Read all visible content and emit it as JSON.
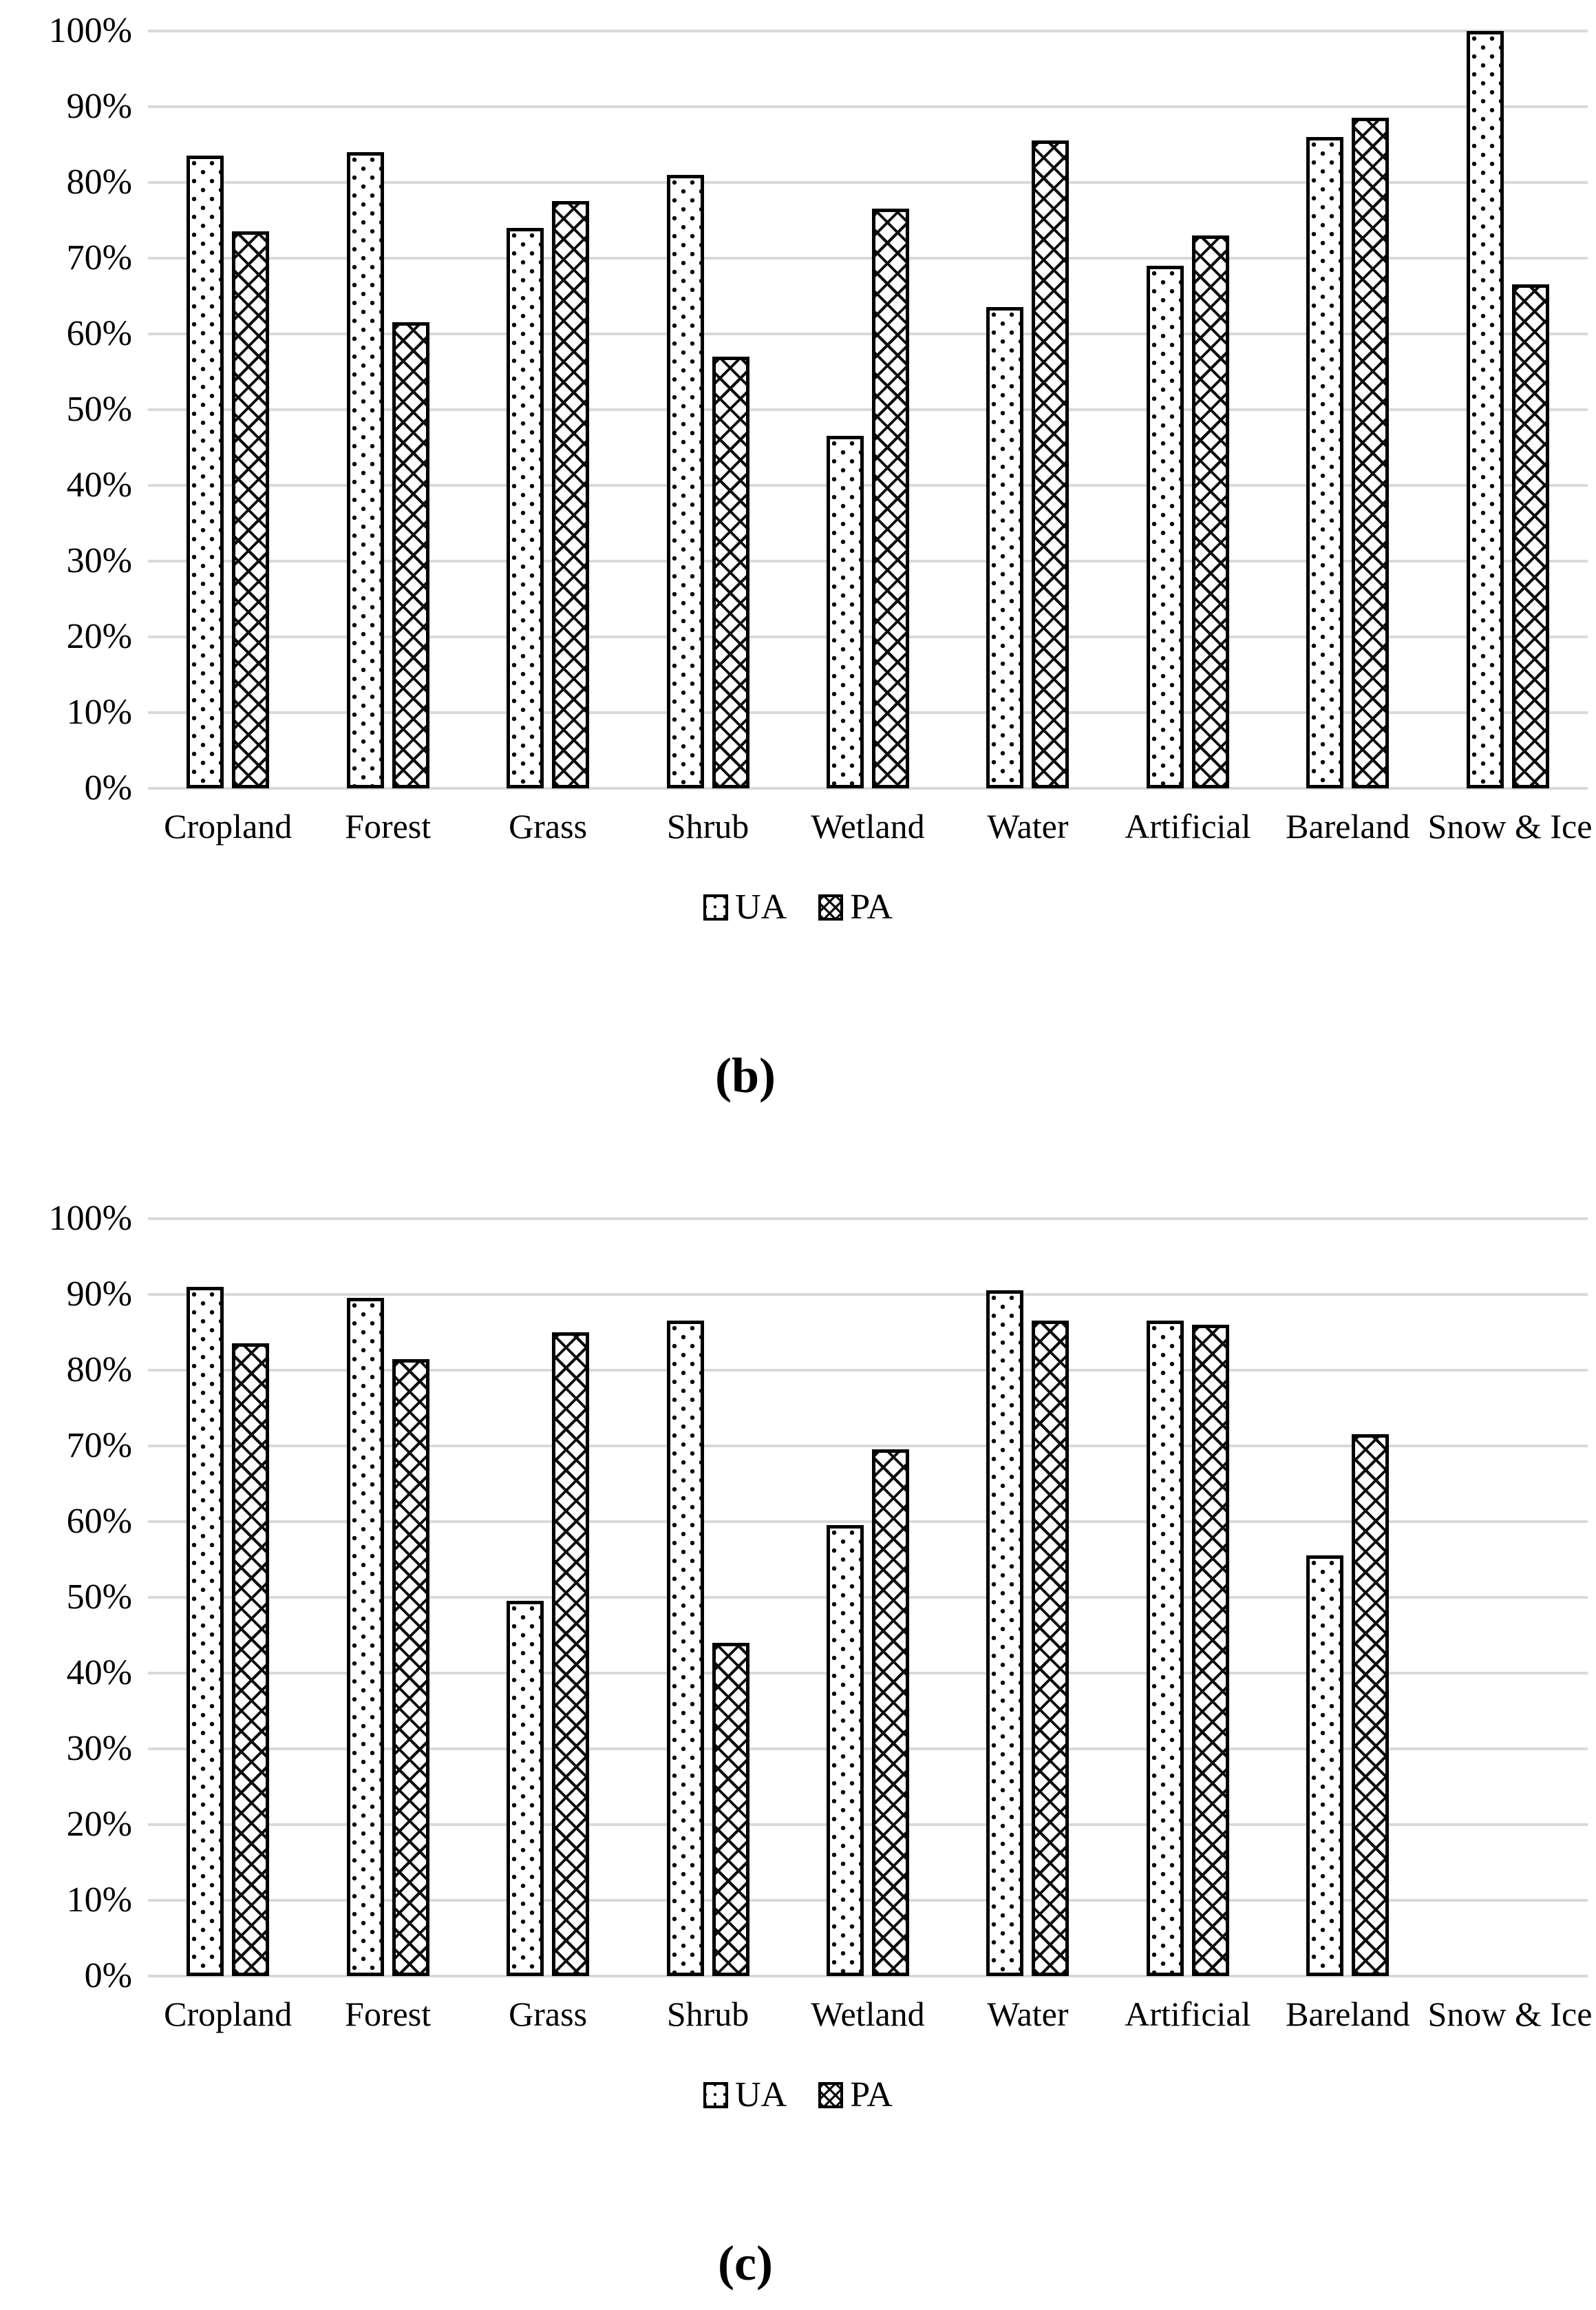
{
  "figure": {
    "background_color": "#ffffff",
    "text_color": "#000000",
    "gridline_color": "#d9d9d9",
    "bar_fill_color": "#ffffff",
    "bar_border_color": "#000000"
  },
  "chart_data": [
    {
      "id": "b",
      "type": "bar",
      "caption": "(b)",
      "title": "",
      "xlabel": "",
      "ylabel": "",
      "ylim": [
        0,
        100
      ],
      "ytick_step": 10,
      "ytick_labels": [
        "100%",
        "90%",
        "80%",
        "70%",
        "60%",
        "50%",
        "40%",
        "30%",
        "20%",
        "10%",
        "0%"
      ],
      "grid": "horizontal",
      "legend_position": "bottom",
      "categories": [
        "Cropland",
        "Forest",
        "Grass",
        "Shrub",
        "Wetland",
        "Water",
        "Artificial",
        "Bareland",
        "Snow & Ice"
      ],
      "series": [
        {
          "name": "UA",
          "pattern": "dots",
          "values": [
            83.5,
            84,
            74,
            81,
            46.5,
            63.5,
            69,
            86,
            100
          ]
        },
        {
          "name": "PA",
          "pattern": "crosshatch",
          "values": [
            73.5,
            61.5,
            77.5,
            57,
            76.5,
            85.5,
            73,
            88.5,
            66.5
          ]
        }
      ]
    },
    {
      "id": "c",
      "type": "bar",
      "caption": "(c)",
      "title": "",
      "xlabel": "",
      "ylabel": "",
      "ylim": [
        0,
        100
      ],
      "ytick_step": 10,
      "ytick_labels": [
        "100%",
        "90%",
        "80%",
        "70%",
        "60%",
        "50%",
        "40%",
        "30%",
        "20%",
        "10%",
        "0%"
      ],
      "grid": "horizontal",
      "legend_position": "bottom",
      "categories": [
        "Cropland",
        "Forest",
        "Grass",
        "Shrub",
        "Wetland",
        "Water",
        "Artificial",
        "Bareland",
        "Snow & Ice"
      ],
      "series": [
        {
          "name": "UA",
          "pattern": "dots",
          "values": [
            91,
            89.5,
            49.5,
            86.5,
            59.5,
            90.5,
            86.5,
            55.5,
            null
          ]
        },
        {
          "name": "PA",
          "pattern": "crosshatch",
          "values": [
            83.5,
            81.5,
            85,
            44,
            69.5,
            86.5,
            86,
            71.5,
            null
          ]
        }
      ]
    }
  ]
}
